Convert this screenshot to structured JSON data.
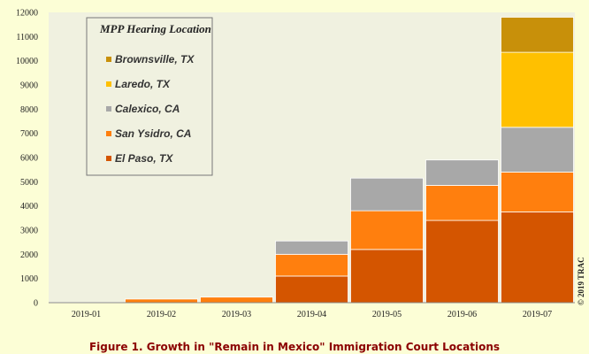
{
  "caption": "Figure 1. Growth in \"Remain in Mexico\" Immigration Court Locations",
  "credit": "© 2019 TRAC",
  "chart_data": {
    "type": "bar",
    "stacked": true,
    "categories": [
      "2019-01",
      "2019-02",
      "2019-03",
      "2019-04",
      "2019-05",
      "2019-06",
      "2019-07"
    ],
    "ylim": [
      0,
      12000
    ],
    "yticks": [
      0,
      1000,
      2000,
      3000,
      4000,
      5000,
      6000,
      7000,
      8000,
      9000,
      10000,
      11000,
      12000
    ],
    "grid": false,
    "legend": {
      "title": "MPP Hearing Location",
      "placement": "top-left",
      "order": [
        "Brownsville, TX",
        "Laredo, TX",
        "Calexico, CA",
        "San Ysidro, CA",
        "El Paso, TX"
      ]
    },
    "series": [
      {
        "name": "El Paso, TX",
        "color": "#d45500",
        "values": [
          0,
          0,
          0,
          1100,
          2200,
          3400,
          3750
        ]
      },
      {
        "name": "San Ysidro, CA",
        "color": "#ff7f0e",
        "values": [
          10,
          150,
          230,
          900,
          1600,
          1450,
          1650
        ]
      },
      {
        "name": "Calexico, CA",
        "color": "#a8a8a8",
        "values": [
          0,
          0,
          0,
          550,
          1350,
          1050,
          1850
        ]
      },
      {
        "name": "Laredo, TX",
        "color": "#ffc000",
        "values": [
          0,
          0,
          0,
          0,
          0,
          0,
          3100
        ]
      },
      {
        "name": "Brownsville, TX",
        "color": "#c8900a",
        "values": [
          0,
          0,
          0,
          0,
          0,
          0,
          1450
        ]
      }
    ]
  }
}
